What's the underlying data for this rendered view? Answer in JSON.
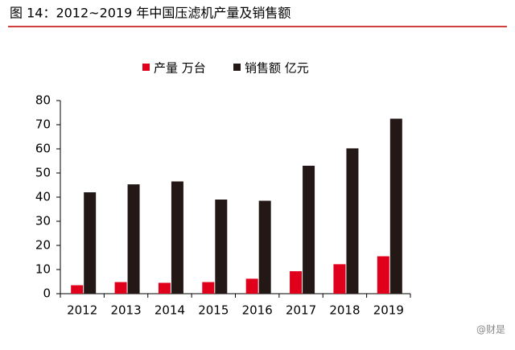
{
  "chart_data": {
    "type": "bar",
    "title": "图 14：2012~2019 年中国压滤机产量及销售额",
    "categories": [
      "2012",
      "2013",
      "2014",
      "2015",
      "2016",
      "2017",
      "2018",
      "2019"
    ],
    "series": [
      {
        "name": "产量 万台",
        "color": "#e0001b",
        "values": [
          3.5,
          4.8,
          4.5,
          4.8,
          6.2,
          9.3,
          12.2,
          15.5
        ]
      },
      {
        "name": "销售额 亿元",
        "color": "#231815",
        "values": [
          42,
          45.3,
          46.5,
          39,
          38.5,
          53,
          60.2,
          72.5
        ]
      }
    ],
    "ylim": [
      0,
      80
    ],
    "yticks": [
      0,
      10,
      20,
      30,
      40,
      50,
      60,
      70,
      80
    ],
    "watermark": "@财是"
  }
}
